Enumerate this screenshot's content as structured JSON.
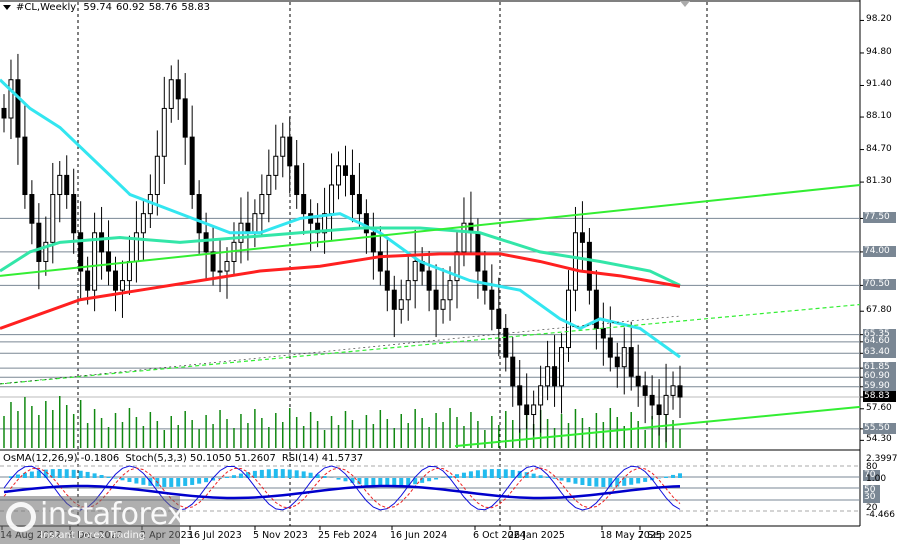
{
  "header": {
    "symbol": "#CL,Weekly",
    "open": "59.74",
    "high": "60.92",
    "low": "58.76",
    "close": "58.83"
  },
  "indicator_header": {
    "osma": "OsMA(12,26,9) -0.1806",
    "stoch": "Stoch(5,3,3) 50.1050 51.2607",
    "rsi": "RSI(14) 41.5737"
  },
  "price_axis": {
    "ticks": [
      "98.20",
      "94.80",
      "91.40",
      "88.10",
      "84.70",
      "81.30",
      "77.50",
      "74.00",
      "70.50",
      "67.80",
      "65.35",
      "64.60",
      "63.40",
      "61.85",
      "60.90",
      "59.90",
      "58.83",
      "57.60",
      "55.50",
      "54.30"
    ],
    "tagged_levels": [
      "77.50",
      "74.00",
      "70.50",
      "65.35",
      "64.60",
      "63.40",
      "61.85",
      "60.90",
      "59.90",
      "55.50"
    ],
    "current_price": "58.83"
  },
  "indicator_axis": {
    "ticks": [
      "2.3997",
      "80",
      "70",
      "1.00",
      "50",
      "30",
      "20",
      "-4.466"
    ]
  },
  "time_axis": {
    "labels": [
      "14 Aug 2022",
      "4 Dec 2022",
      "2 Apr 2023",
      "16 Jul 2023",
      "5 Nov 2023",
      "25 Feb 2024",
      "16 Jun 2024",
      "6 Oct 2024",
      "26 Jan 2025",
      "18 May 2025",
      "7 Sep 2025"
    ]
  },
  "watermark": {
    "brand": "instaforex",
    "tagline": "Instant Forex Trading"
  },
  "colors": {
    "ema_fast": "#33e6f0",
    "ema_mid": "#33e6a8",
    "ema_slow": "#ff2020",
    "trendline": "#33ee33",
    "volume": "#118811",
    "osma": "#22bbee",
    "stoch_main": "#1010dd",
    "stoch_signal": "#ee2222",
    "rsi": "#0000cc",
    "level_line": "#7a8794"
  },
  "chart_data": {
    "type": "candlestick",
    "title": "#CL,Weekly",
    "timeframe": "Weekly",
    "ohlc_last": {
      "open": 59.74,
      "high": 60.92,
      "low": 58.76,
      "close": 58.83
    },
    "ylim": [
      53.5,
      99.5
    ],
    "x_labels": [
      "14 Aug 2022",
      "4 Dec 2022",
      "2 Apr 2023",
      "16 Jul 2023",
      "5 Nov 2023",
      "25 Feb 2024",
      "16 Jun 2024",
      "6 Oct 2024",
      "26 Jan 2025",
      "18 May 2025",
      "7 Sep 2025"
    ],
    "horizontal_levels": [
      77.5,
      74.0,
      70.5,
      65.35,
      64.6,
      63.4,
      61.85,
      60.9,
      59.9,
      55.5
    ],
    "close_series_approx": [
      88,
      92,
      86,
      80,
      77,
      73,
      75,
      80,
      82,
      80,
      76,
      72,
      70,
      76,
      74,
      72,
      70,
      71,
      73,
      76,
      78,
      80,
      84,
      89,
      92,
      90,
      86,
      80,
      76,
      74,
      72,
      72,
      73,
      75,
      77,
      76,
      78,
      80,
      82,
      84,
      86,
      83,
      80,
      78,
      77,
      76,
      78,
      81,
      83,
      82,
      80,
      78,
      76,
      74,
      72,
      70,
      68,
      69,
      71,
      73,
      72,
      70,
      68,
      69,
      71,
      74,
      77,
      76,
      72,
      70,
      68,
      66,
      63,
      60,
      58,
      57,
      58,
      60,
      62,
      60,
      64,
      70,
      76,
      75,
      70,
      66,
      65,
      63,
      62,
      64,
      61,
      60,
      59,
      58,
      57,
      59,
      60,
      58.83
    ],
    "moving_averages": [
      {
        "name": "EMA fast (cyan)",
        "start": 92,
        "end": 65.5
      },
      {
        "name": "EMA mid (aquamarine)",
        "start": 72,
        "end": 70.5
      },
      {
        "name": "EMA slow (red)",
        "start": 66,
        "end": 70.5
      }
    ],
    "trendlines": [
      {
        "name": "upper channel",
        "from": [
          0,
          71.5
        ],
        "to": [
          860,
          81.0
        ]
      },
      {
        "name": "middle channel (dashed)",
        "from": [
          0,
          60.2
        ],
        "to": [
          860,
          68.5
        ]
      },
      {
        "name": "lower channel",
        "from": [
          455,
          53.7
        ],
        "to": [
          860,
          57.8
        ]
      }
    ],
    "indicators": {
      "OsMA": {
        "params": "12,26,9",
        "value": -0.1806
      },
      "Stochastic": {
        "params": "5,3,3",
        "main": 50.105,
        "signal": 51.2607
      },
      "RSI": {
        "params": "14",
        "value": 41.5737
      },
      "levels": [
        80,
        70,
        50,
        30,
        20
      ],
      "ylim": [
        -4.466,
        2.3997
      ]
    }
  }
}
